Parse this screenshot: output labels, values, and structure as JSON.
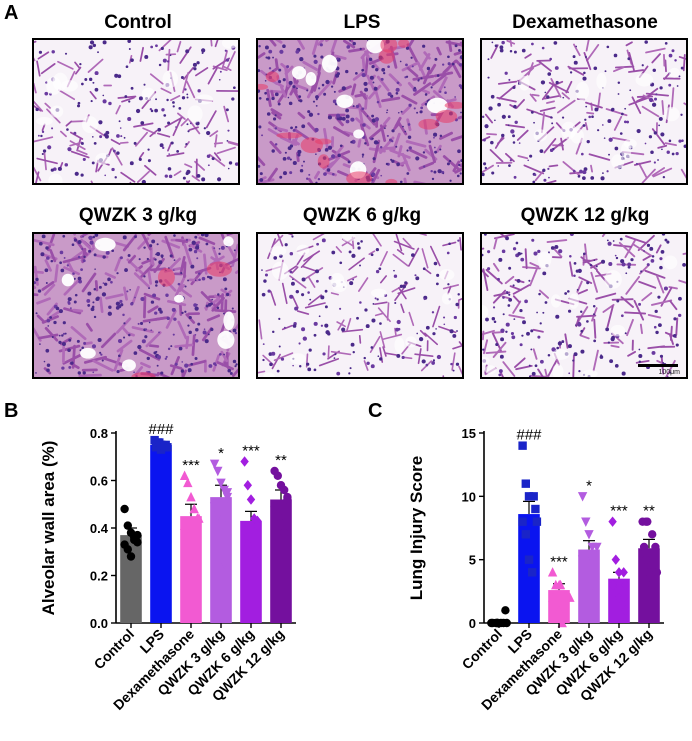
{
  "panel_a": {
    "letter": "A",
    "images": [
      {
        "title": "Control",
        "tissue_density": 0.35,
        "hemorrhage": 0.0,
        "scale_bar": ""
      },
      {
        "title": "LPS",
        "tissue_density": 0.85,
        "hemorrhage": 0.35,
        "scale_bar": ""
      },
      {
        "title": "Dexamethasone",
        "tissue_density": 0.38,
        "hemorrhage": 0.0,
        "scale_bar": ""
      },
      {
        "title": "QWZK 3 g/kg",
        "tissue_density": 0.8,
        "hemorrhage": 0.08,
        "scale_bar": ""
      },
      {
        "title": "QWZK 6 g/kg",
        "tissue_density": 0.3,
        "hemorrhage": 0.0,
        "scale_bar": ""
      },
      {
        "title": "QWZK 12 g/kg",
        "tissue_density": 0.42,
        "hemorrhage": 0.0,
        "scale_bar": "100μm"
      }
    ]
  },
  "chart_data": [
    {
      "panel": "B",
      "type": "bar",
      "ylabel": "Alveolar wall area (%)",
      "ylim": [
        0,
        0.8
      ],
      "yticks": [
        "0.0",
        "0.2",
        "0.4",
        "0.6",
        "0.8"
      ],
      "categories": [
        "Control",
        "LPS",
        "Dexamethasone",
        "QWZK 3 g/kg",
        "QWZK 6 g/kg",
        "QWZK 12 g/kg"
      ],
      "values": [
        0.37,
        0.75,
        0.45,
        0.53,
        0.43,
        0.52
      ],
      "errors": [
        0.03,
        0.01,
        0.05,
        0.05,
        0.04,
        0.04
      ],
      "annotations": [
        "",
        "###",
        "***",
        "*",
        "***",
        "**"
      ],
      "colors": [
        "#666666",
        "#0a14f0",
        "#f25ad2",
        "#b35ce0",
        "#a21ee0",
        "#74109e"
      ],
      "markers": [
        "circle",
        "square",
        "triangle",
        "triangle-down",
        "diamond",
        "circle"
      ],
      "points": [
        [
          0.48,
          0.41,
          0.38,
          0.36,
          0.34,
          0.33,
          0.31,
          0.28,
          0.35,
          0.37
        ],
        [
          0.77,
          0.76,
          0.75,
          0.75,
          0.74,
          0.74,
          0.76,
          0.73,
          0.75,
          0.74
        ],
        [
          0.62,
          0.59,
          0.53,
          0.48,
          0.44,
          0.41,
          0.36,
          0.31,
          0.26,
          0.44
        ],
        [
          0.67,
          0.64,
          0.59,
          0.56,
          0.53,
          0.49,
          0.45,
          0.41,
          0.25,
          0.55
        ],
        [
          0.68,
          0.58,
          0.52,
          0.44,
          0.43,
          0.39,
          0.33,
          0.29,
          0.27,
          0.41
        ],
        [
          0.64,
          0.62,
          0.58,
          0.56,
          0.52,
          0.49,
          0.45,
          0.42,
          0.38,
          0.53
        ]
      ]
    },
    {
      "panel": "C",
      "type": "bar",
      "ylabel": "Lung Injury Score",
      "ylim": [
        0,
        15
      ],
      "yticks": [
        "0",
        "5",
        "10",
        "15"
      ],
      "categories": [
        "Control",
        "LPS",
        "Dexamethasone",
        "QWZK 3 g/kg",
        "QWZK 6 g/kg",
        "QWZK 12 g/kg"
      ],
      "values": [
        0.15,
        8.6,
        2.6,
        5.8,
        3.5,
        5.9
      ],
      "errors": [
        0.1,
        1.0,
        0.5,
        0.7,
        0.5,
        0.7
      ],
      "annotations": [
        "",
        "###",
        "***",
        "*",
        "***",
        "**"
      ],
      "colors": [
        "#666666",
        "#0a14f0",
        "#f25ad2",
        "#b35ce0",
        "#a21ee0",
        "#74109e"
      ],
      "markers": [
        "circle",
        "square",
        "triangle",
        "triangle-down",
        "diamond",
        "circle"
      ],
      "points": [
        [
          0,
          0,
          0,
          0,
          0,
          0,
          0,
          0,
          0,
          1
        ],
        [
          14,
          11,
          10,
          10,
          9,
          8,
          7,
          5,
          4,
          8
        ],
        [
          4,
          3,
          3,
          3,
          2,
          2,
          2,
          1,
          0,
          2
        ],
        [
          10,
          8,
          7,
          6,
          6,
          5,
          5,
          4,
          3,
          5
        ],
        [
          8,
          5,
          4,
          4,
          3,
          3,
          3,
          2,
          2,
          1
        ],
        [
          8,
          8,
          8,
          7,
          6,
          6,
          5,
          4,
          3,
          4
        ]
      ]
    }
  ]
}
